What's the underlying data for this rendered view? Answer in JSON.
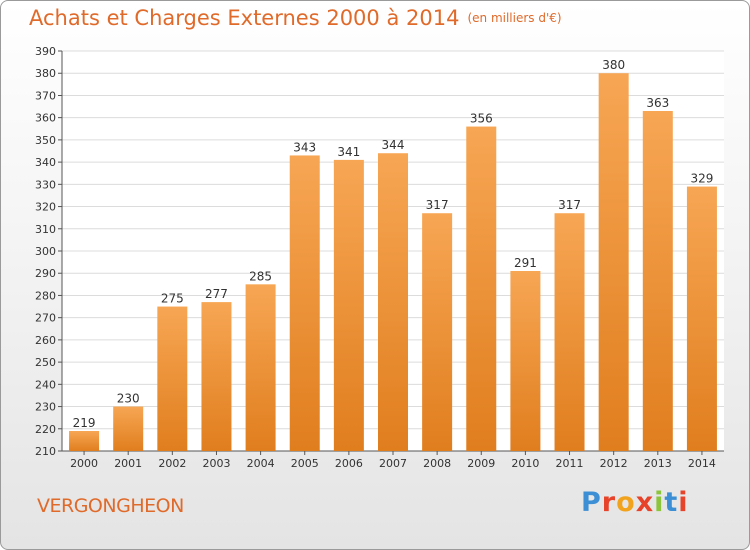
{
  "header": {
    "title": "Achats et Charges Externes 2000 à 2014",
    "unit": "(en milliers d'€)"
  },
  "footer": {
    "town": "VERGONGHEON",
    "logo": {
      "letters": [
        "P",
        "r",
        "o",
        "x",
        "i",
        "t",
        "i"
      ],
      "colors": [
        "#3c8fd4",
        "#e7432a",
        "#f2a31e",
        "#e7432a",
        "#8cc43c",
        "#3c8fd4",
        "#e7432a"
      ]
    }
  },
  "colors": {
    "bar_top": "#f7a654",
    "bar_bottom": "#e07e1e",
    "grid": "#dcdcdc",
    "text": "#333333",
    "accent": "#e06a2a"
  },
  "chart_data": {
    "type": "bar",
    "title": "Achats et Charges Externes 2000 à 2014",
    "subtitle": "(en milliers d'€)",
    "categories": [
      "2000",
      "2001",
      "2002",
      "2003",
      "2004",
      "2005",
      "2006",
      "2007",
      "2008",
      "2009",
      "2010",
      "2011",
      "2012",
      "2013",
      "2014"
    ],
    "values": [
      219,
      230,
      275,
      277,
      285,
      343,
      341,
      344,
      317,
      356,
      291,
      317,
      380,
      363,
      329
    ],
    "ylim": [
      210,
      390
    ],
    "yticks": [
      210,
      220,
      230,
      240,
      250,
      260,
      270,
      280,
      290,
      300,
      310,
      320,
      330,
      340,
      350,
      360,
      370,
      380,
      390
    ],
    "grid": true,
    "legend": "none"
  }
}
